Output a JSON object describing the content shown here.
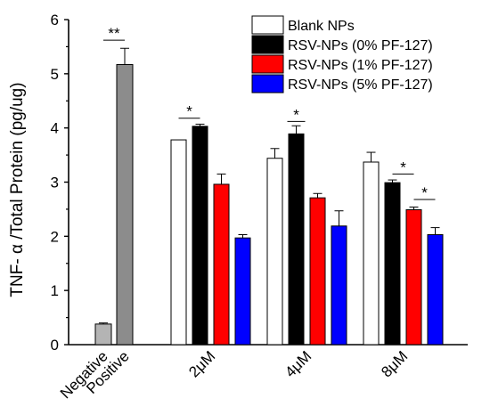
{
  "chart_data": {
    "type": "bar",
    "ylabel": "TNF- α /Total Protein (pg/ug)",
    "ylim": [
      0,
      6
    ],
    "yticks": [
      "0",
      "1",
      "2",
      "3",
      "4",
      "5",
      "6"
    ],
    "grid": false,
    "legend_position": "top-right",
    "control_groups": {
      "categories": [
        "Negative",
        "Positive"
      ],
      "values": [
        0.38,
        5.17
      ],
      "errors": [
        0.02,
        0.3
      ],
      "colors": [
        "#b4b4b4",
        "#8c8c8c"
      ]
    },
    "categories": [
      "2μM",
      "4μM",
      "8μM"
    ],
    "series": [
      {
        "name": "Blank NPs",
        "color": "#ffffff",
        "values": [
          3.78,
          3.44,
          3.37
        ],
        "errors": [
          0.0,
          0.18,
          0.18
        ]
      },
      {
        "name": "RSV-NPs (0% PF-127)",
        "color": "#000000",
        "values": [
          4.03,
          3.89,
          2.99
        ],
        "errors": [
          0.04,
          0.15,
          0.05
        ]
      },
      {
        "name": "RSV-NPs (1% PF-127)",
        "color": "#ff0000",
        "values": [
          2.96,
          2.71,
          2.49
        ],
        "errors": [
          0.19,
          0.08,
          0.05
        ]
      },
      {
        "name": "RSV-NPs (5% PF-127)",
        "color": "#0000ff",
        "values": [
          1.97,
          2.19,
          2.03
        ],
        "errors": [
          0.06,
          0.28,
          0.13
        ]
      }
    ],
    "annotations": [
      {
        "text": "**",
        "type": "control",
        "from": 0,
        "to": 1,
        "y": 5.62
      },
      {
        "text": "*",
        "type": "group",
        "category": 0,
        "from": 0,
        "to": 1,
        "y": 4.18
      },
      {
        "text": "*",
        "type": "group",
        "category": 1,
        "from": 1,
        "to": 1,
        "y": 4.12
      },
      {
        "text": "*",
        "type": "group",
        "category": 2,
        "from": 1,
        "to": 2,
        "y": 3.15
      },
      {
        "text": "*",
        "type": "group",
        "category": 2,
        "from": 2,
        "to": 3,
        "y": 2.68
      }
    ]
  }
}
